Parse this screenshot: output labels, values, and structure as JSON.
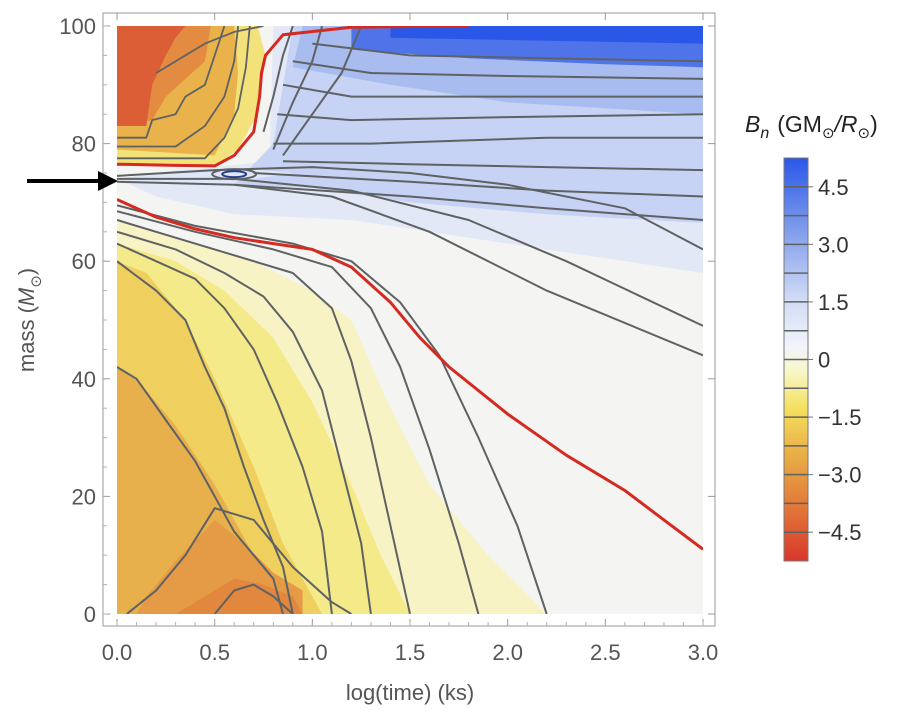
{
  "chart_data": {
    "type": "heatmap",
    "title": "",
    "xlabel": "log(time) (ks)",
    "ylabel_prefix": "mass (",
    "ylabel_symbol": "M",
    "ylabel_sub": "⊙",
    "ylabel_suffix": ")",
    "xlim": [
      0,
      3
    ],
    "ylim": [
      0,
      100
    ],
    "xticks": [
      0.0,
      0.5,
      1.0,
      1.5,
      2.0,
      2.5,
      3.0
    ],
    "xtick_labels": [
      "0.0",
      "0.5",
      "1.0",
      "1.5",
      "2.0",
      "2.5",
      "3.0"
    ],
    "yticks": [
      0,
      20,
      40,
      60,
      80,
      100
    ],
    "ytick_labels": [
      "0",
      "20",
      "40",
      "60",
      "80",
      "100"
    ],
    "colorbar": {
      "title_symbol": "B",
      "title_sub": "n",
      "title_units_1": "(GM",
      "title_units_sun": "⊙",
      "title_units_2": "/R",
      "title_units_3": ")",
      "range": [
        -5.25,
        5.25
      ],
      "levels_step": 0.75,
      "ticks": [
        4.5,
        3.0,
        1.5,
        0,
        -1.5,
        -3.0,
        -4.5
      ],
      "tick_labels": [
        "4.5",
        "3.0",
        "1.5",
        "0",
        "−1.5",
        "−3.0",
        "−4.5"
      ],
      "colors": {
        "neg_strong": "#d9362b",
        "neg_mid": "#e8943c",
        "neg_light": "#f2c64a",
        "neg_pale": "#f9f07a",
        "zero": "#f7f7ee",
        "pos_pale": "#e6ebf8",
        "pos_mid": "#8aa4ec",
        "pos_strong": "#2a57e8"
      }
    },
    "annotation": {
      "type": "arrow",
      "points_to_mass": 74,
      "points_to_x": 0.0
    },
    "zero_contour": [
      {
        "name": "lower",
        "points": [
          [
            0.0,
            70.5
          ],
          [
            0.2,
            67.5
          ],
          [
            0.4,
            65.5
          ],
          [
            0.6,
            64
          ],
          [
            0.8,
            63
          ],
          [
            1.0,
            62
          ],
          [
            1.2,
            59
          ],
          [
            1.4,
            53
          ],
          [
            1.55,
            47
          ],
          [
            1.7,
            42
          ],
          [
            2.0,
            34
          ],
          [
            2.3,
            27
          ],
          [
            2.6,
            21
          ],
          [
            2.8,
            16
          ],
          [
            3.0,
            11
          ]
        ]
      },
      {
        "name": "upper",
        "points": [
          [
            0.0,
            76.5
          ],
          [
            0.3,
            76.3
          ],
          [
            0.5,
            76.2
          ],
          [
            0.6,
            78
          ],
          [
            0.7,
            82
          ],
          [
            0.73,
            88
          ],
          [
            0.74,
            92
          ],
          [
            0.76,
            95
          ],
          [
            0.85,
            98.5
          ],
          [
            1.2,
            99.8
          ],
          [
            1.8,
            100
          ]
        ]
      }
    ]
  }
}
